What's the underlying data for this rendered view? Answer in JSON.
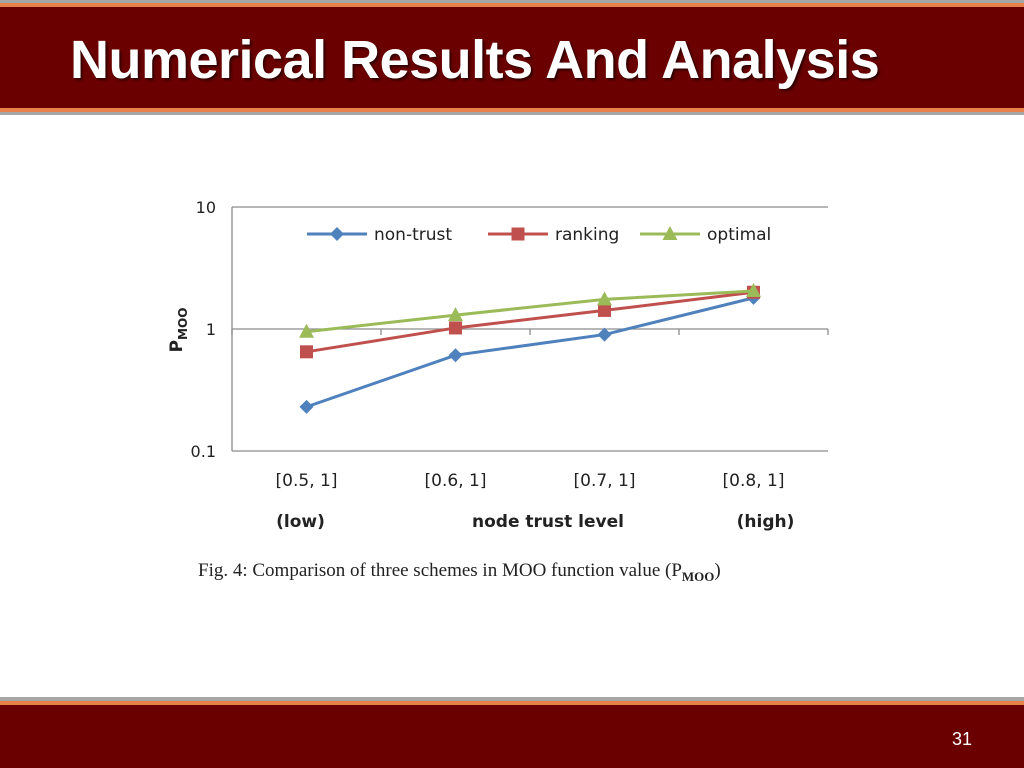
{
  "slide": {
    "title": "Numerical Results And Analysis",
    "page_number": "31",
    "caption_main": "Fig. 4: Comparison of three schemes in MOO function value (P",
    "caption_sub": "MOO",
    "caption_end": ")"
  },
  "colors": {
    "header_bg": "#6a0000",
    "accent_orange": "#e8824a",
    "accent_gray": "#a6a6a6",
    "non_trust": "#4f81bd",
    "ranking": "#c0504d",
    "optimal": "#9bbb59"
  },
  "chart_data": {
    "type": "line",
    "title": "",
    "xlabel": "node trust level",
    "ylabel_main": "P",
    "ylabel_sub": "MOO",
    "yscale": "log",
    "ylim": [
      0.1,
      10
    ],
    "yticks": [
      "0.1",
      "1",
      "10"
    ],
    "categories": [
      "[0.5, 1]",
      "[0.6, 1]",
      "[0.7, 1]",
      "[0.8, 1]"
    ],
    "axis_annotations": [
      "(low)",
      "(high)"
    ],
    "grid": "horizontal major lines",
    "legend_position": "top",
    "series": [
      {
        "name": "non-trust",
        "marker": "diamond",
        "values": [
          0.23,
          0.61,
          0.9,
          1.8
        ]
      },
      {
        "name": "ranking",
        "marker": "square",
        "values": [
          0.65,
          1.02,
          1.42,
          2.0
        ]
      },
      {
        "name": "optimal",
        "marker": "triangle",
        "values": [
          0.95,
          1.3,
          1.75,
          2.05
        ]
      }
    ]
  }
}
